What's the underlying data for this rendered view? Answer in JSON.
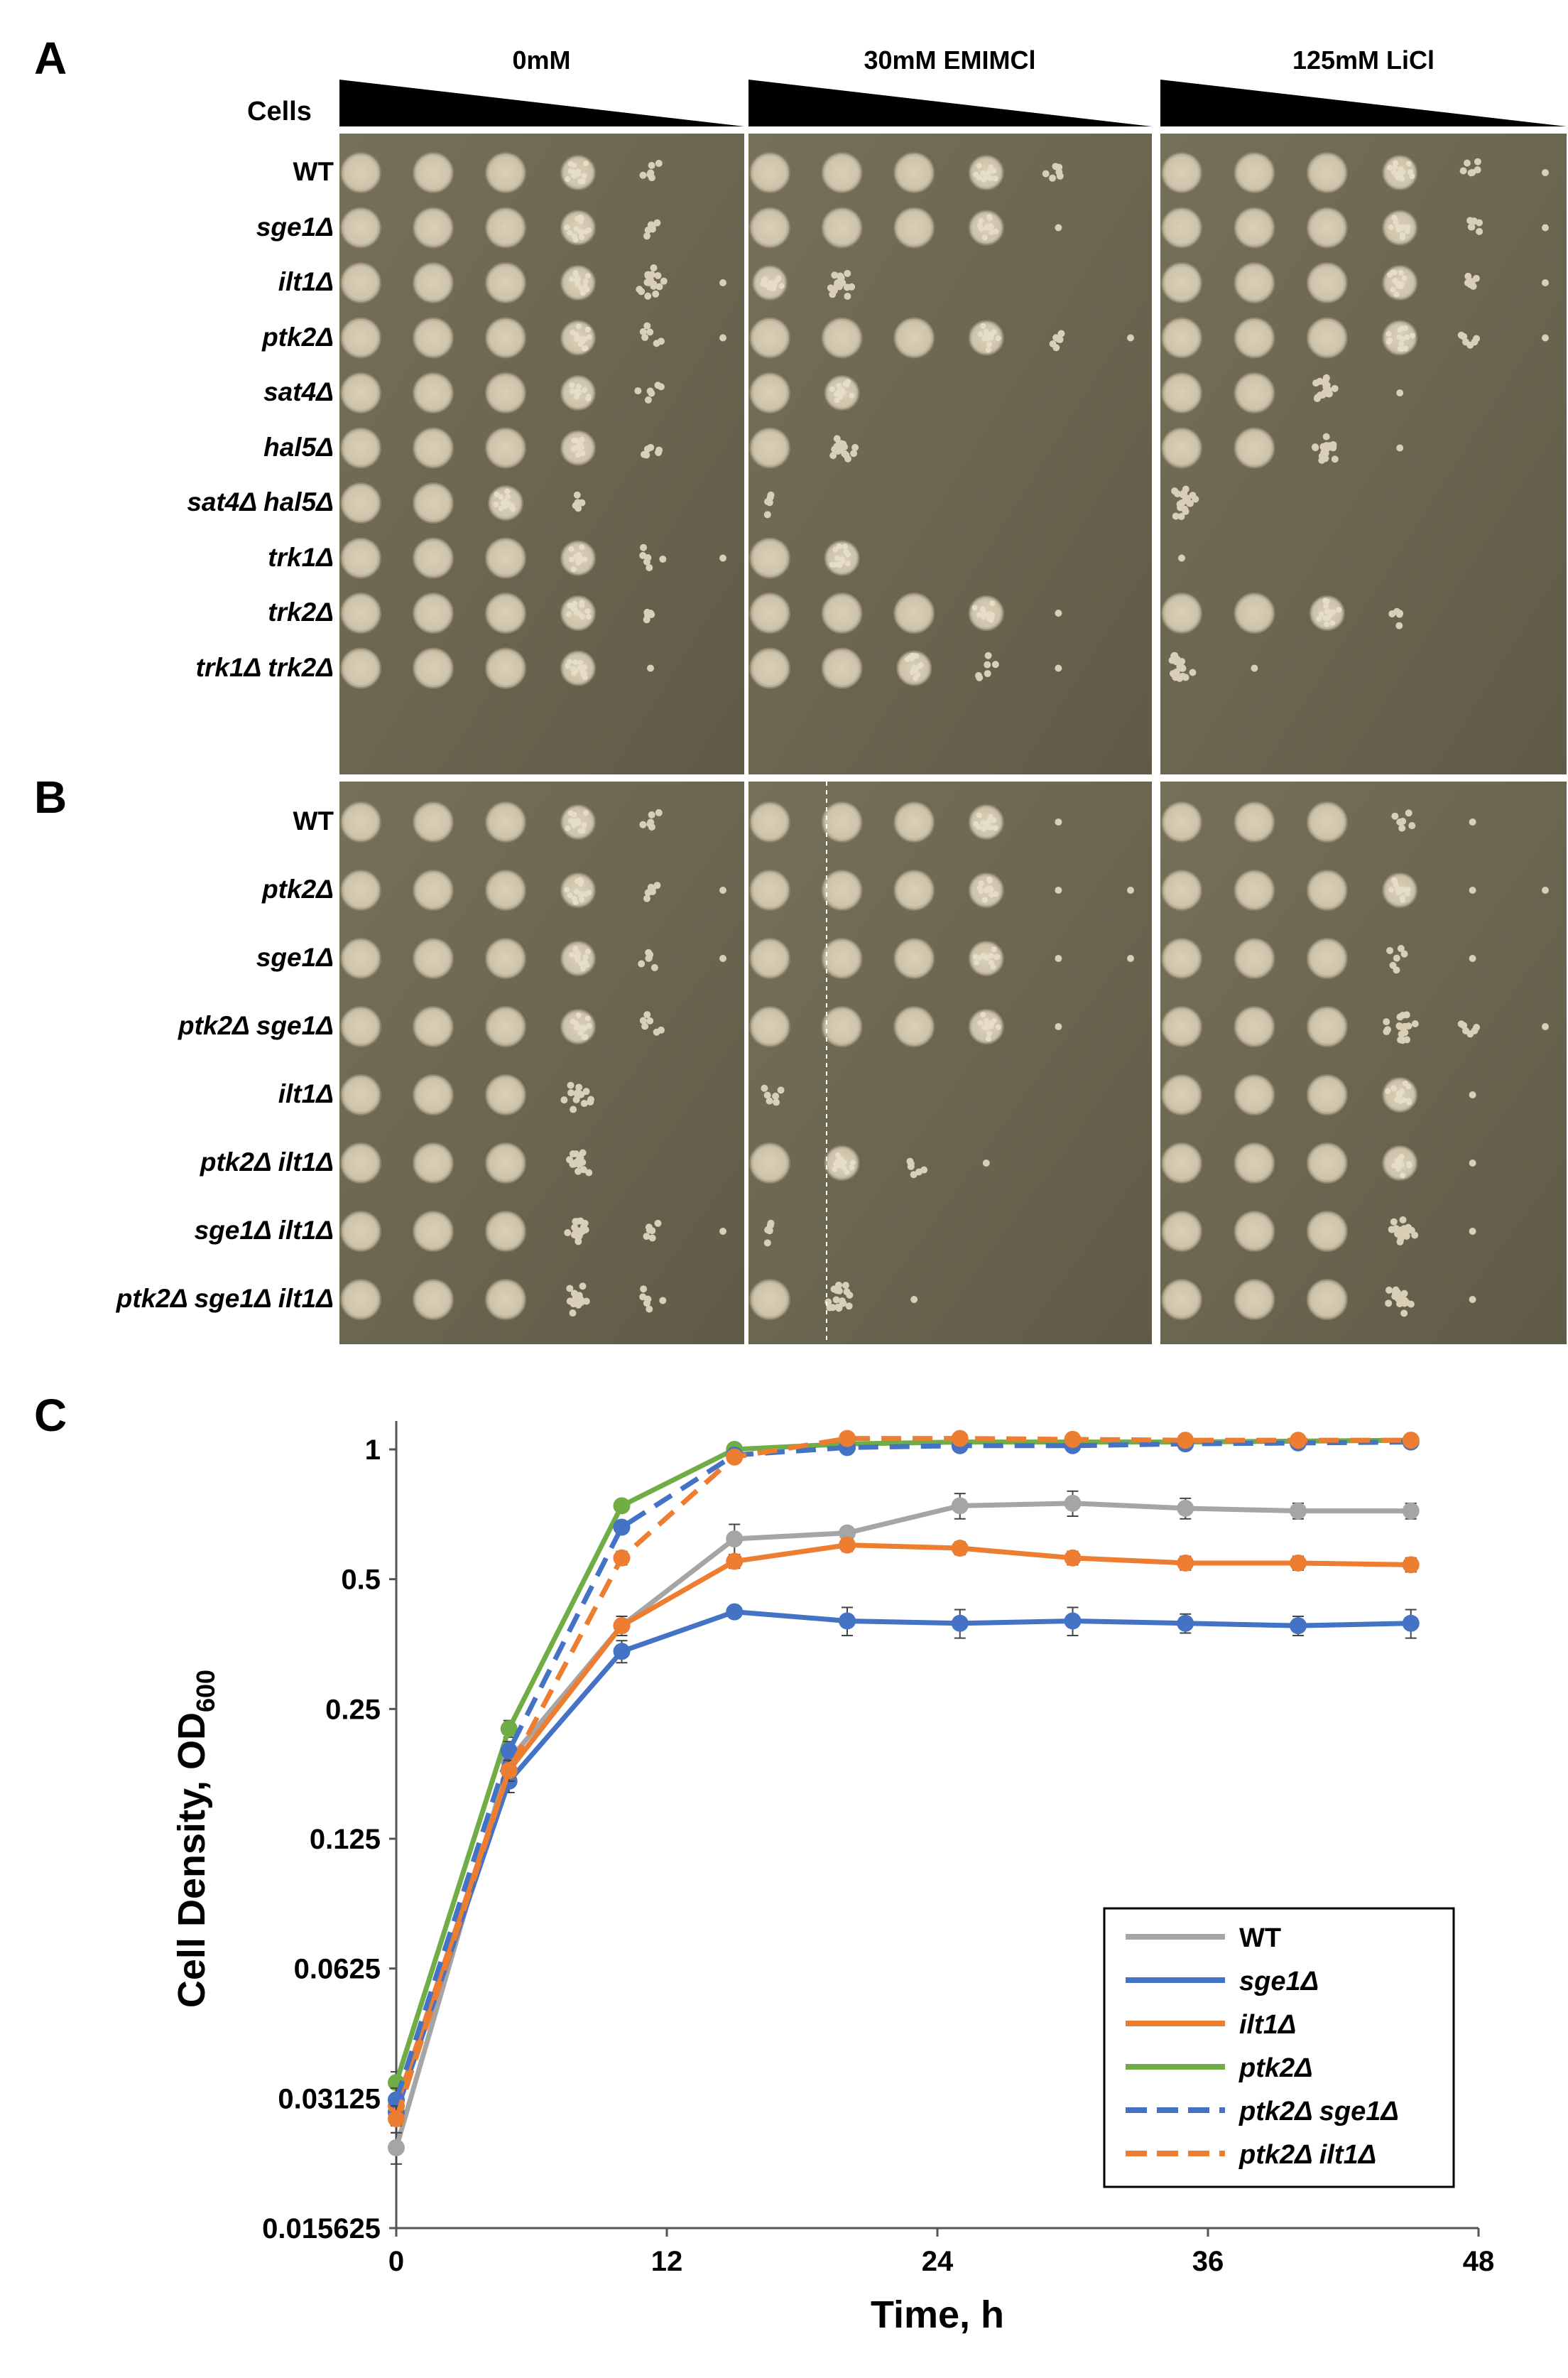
{
  "panels": {
    "a": "A",
    "b": "B",
    "c": "C"
  },
  "conditions": [
    "0mM",
    "30mM EMIMCl",
    "125mM LiCl"
  ],
  "cells_label": "Cells",
  "panel_a_strains": [
    "WT",
    "sge1Δ",
    "ilt1Δ",
    "ptk2Δ",
    "sat4Δ",
    "hal5Δ",
    "sat4Δ hal5Δ",
    "trk1Δ",
    "trk2Δ",
    "trk1Δ trk2Δ"
  ],
  "panel_b_strains": [
    "WT",
    "ptk2Δ",
    "sge1Δ",
    "ptk2Δ sge1Δ",
    "ilt1Δ",
    "ptk2Δ ilt1Δ",
    "sge1Δ ilt1Δ",
    "ptk2Δ sge1Δ ilt1Δ"
  ],
  "spots_a": [
    [
      [
        5,
        5,
        5,
        4,
        2,
        0
      ],
      [
        5,
        5,
        5,
        4,
        2,
        0
      ],
      [
        5,
        5,
        5,
        4,
        2,
        1
      ]
    ],
    [
      [
        5,
        5,
        5,
        4,
        2,
        0
      ],
      [
        5,
        5,
        5,
        4,
        1,
        0
      ],
      [
        5,
        5,
        5,
        4,
        2,
        1
      ]
    ],
    [
      [
        5,
        5,
        5,
        4,
        3,
        1
      ],
      [
        4,
        3,
        0,
        0,
        0,
        0
      ],
      [
        5,
        5,
        5,
        4,
        2,
        1
      ]
    ],
    [
      [
        5,
        5,
        5,
        4,
        2,
        1
      ],
      [
        5,
        5,
        5,
        4,
        2,
        1
      ],
      [
        5,
        5,
        5,
        4,
        2,
        1
      ]
    ],
    [
      [
        5,
        5,
        5,
        4,
        2,
        0
      ],
      [
        5,
        4,
        0,
        0,
        0,
        0
      ],
      [
        5,
        5,
        3,
        1,
        0,
        0
      ]
    ],
    [
      [
        5,
        5,
        5,
        4,
        2,
        0
      ],
      [
        5,
        3,
        0,
        0,
        0,
        0
      ],
      [
        5,
        5,
        3,
        1,
        0,
        0
      ]
    ],
    [
      [
        5,
        5,
        4,
        2,
        0,
        0
      ],
      [
        2,
        0,
        0,
        0,
        0,
        0
      ],
      [
        3,
        0,
        0,
        0,
        0,
        0
      ]
    ],
    [
      [
        5,
        5,
        5,
        4,
        2,
        1
      ],
      [
        5,
        4,
        0,
        0,
        0,
        0
      ],
      [
        1,
        0,
        0,
        0,
        0,
        0
      ]
    ],
    [
      [
        5,
        5,
        5,
        4,
        2,
        0
      ],
      [
        5,
        5,
        5,
        4,
        1,
        0
      ],
      [
        5,
        5,
        4,
        2,
        0,
        0
      ]
    ],
    [
      [
        5,
        5,
        5,
        4,
        1,
        0
      ],
      [
        5,
        5,
        4,
        2,
        1,
        0
      ],
      [
        3,
        1,
        0,
        0,
        0,
        0
      ]
    ]
  ],
  "spots_b": [
    [
      [
        5,
        5,
        5,
        4,
        2,
        0
      ],
      [
        5,
        5,
        5,
        4,
        1,
        0
      ],
      [
        5,
        5,
        5,
        2,
        1,
        0
      ]
    ],
    [
      [
        5,
        5,
        5,
        4,
        2,
        1
      ],
      [
        5,
        5,
        5,
        4,
        1,
        1
      ],
      [
        5,
        5,
        5,
        4,
        1,
        1
      ]
    ],
    [
      [
        5,
        5,
        5,
        4,
        2,
        1
      ],
      [
        5,
        5,
        5,
        4,
        1,
        1
      ],
      [
        5,
        5,
        5,
        2,
        1,
        0
      ]
    ],
    [
      [
        5,
        5,
        5,
        4,
        2,
        0
      ],
      [
        5,
        5,
        5,
        4,
        1,
        0
      ],
      [
        5,
        5,
        5,
        3,
        2,
        1
      ]
    ],
    [
      [
        5,
        5,
        5,
        3,
        0,
        0
      ],
      [
        2,
        0,
        0,
        0,
        0,
        0
      ],
      [
        5,
        5,
        5,
        4,
        1,
        0
      ]
    ],
    [
      [
        5,
        5,
        5,
        3,
        0,
        0
      ],
      [
        5,
        4,
        2,
        1,
        0,
        0
      ],
      [
        5,
        5,
        5,
        4,
        1,
        0
      ]
    ],
    [
      [
        5,
        5,
        5,
        3,
        2,
        1
      ],
      [
        2,
        0,
        0,
        0,
        0,
        0
      ],
      [
        5,
        5,
        5,
        3,
        1,
        0
      ]
    ],
    [
      [
        5,
        5,
        5,
        3,
        2,
        0
      ],
      [
        5,
        3,
        1,
        0,
        0,
        0
      ],
      [
        5,
        5,
        5,
        3,
        1,
        0
      ]
    ]
  ],
  "chart_data": {
    "type": "line",
    "title": "",
    "xlabel": "Time, h",
    "ylabel": "Cell Density, OD",
    "ylabel_subscript": "600",
    "y_scale": "log2",
    "ylim": [
      0.015625,
      1
    ],
    "xlim": [
      0,
      48
    ],
    "x_ticks": [
      "0",
      "12",
      "24",
      "36",
      "48"
    ],
    "y_ticks": [
      "1",
      "0.5",
      "0.25",
      "0.125",
      "0.0625",
      "0.03125",
      "0.015625"
    ],
    "legend_position": "bottom-right",
    "x": [
      0,
      5,
      10,
      15,
      20,
      25,
      30,
      35,
      40,
      45
    ],
    "series": [
      {
        "name": "WT",
        "color": "#a5a5a5",
        "dash": false,
        "values": [
          0.024,
          0.19,
          0.39,
          0.62,
          0.64,
          0.74,
          0.75,
          0.73,
          0.72,
          0.72
        ],
        "errors": [
          0.002,
          0.01,
          0.02,
          0.05,
          0.02,
          0.05,
          0.05,
          0.04,
          0.03,
          0.03
        ]
      },
      {
        "name": "sge1Δ",
        "color": "#4472c4",
        "dash": false,
        "values": [
          0.029,
          0.17,
          0.34,
          0.42,
          0.4,
          0.395,
          0.4,
          0.395,
          0.39,
          0.395
        ],
        "errors": [
          0.002,
          0.01,
          0.02,
          0.01,
          0.03,
          0.03,
          0.03,
          0.02,
          0.02,
          0.03
        ]
      },
      {
        "name": "ilt1Δ",
        "color": "#ed7d31",
        "dash": false,
        "values": [
          0.03,
          0.18,
          0.39,
          0.55,
          0.6,
          0.59,
          0.56,
          0.545,
          0.545,
          0.54
        ],
        "errors": [
          0.002,
          0.01,
          0.02,
          0.02,
          0.02,
          0.02,
          0.02,
          0.02,
          0.02,
          0.02
        ]
      },
      {
        "name": "ptk2Δ",
        "color": "#70ad47",
        "dash": false,
        "values": [
          0.034,
          0.225,
          0.74,
          1.0,
          1.03,
          1.04,
          1.04,
          1.04,
          1.045,
          1.05
        ],
        "errors": [
          0.002,
          0.01,
          0.02,
          0.02,
          0.01,
          0.01,
          0.01,
          0.01,
          0.01,
          0.01
        ]
      },
      {
        "name": "ptk2Δ sge1Δ",
        "color": "#4472c4",
        "dash": true,
        "values": [
          0.031,
          0.2,
          0.66,
          0.97,
          1.01,
          1.02,
          1.02,
          1.03,
          1.035,
          1.04
        ],
        "errors": [
          0.002,
          0.01,
          0.02,
          0.02,
          0.01,
          0.01,
          0.01,
          0.01,
          0.01,
          0.01
        ]
      },
      {
        "name": "ptk2Δ ilt1Δ",
        "color": "#ed7d31",
        "dash": true,
        "values": [
          0.028,
          0.18,
          0.56,
          0.96,
          1.06,
          1.06,
          1.055,
          1.05,
          1.05,
          1.05
        ],
        "errors": [
          0.002,
          0.01,
          0.02,
          0.02,
          0.01,
          0.01,
          0.01,
          0.01,
          0.01,
          0.01
        ]
      }
    ]
  }
}
